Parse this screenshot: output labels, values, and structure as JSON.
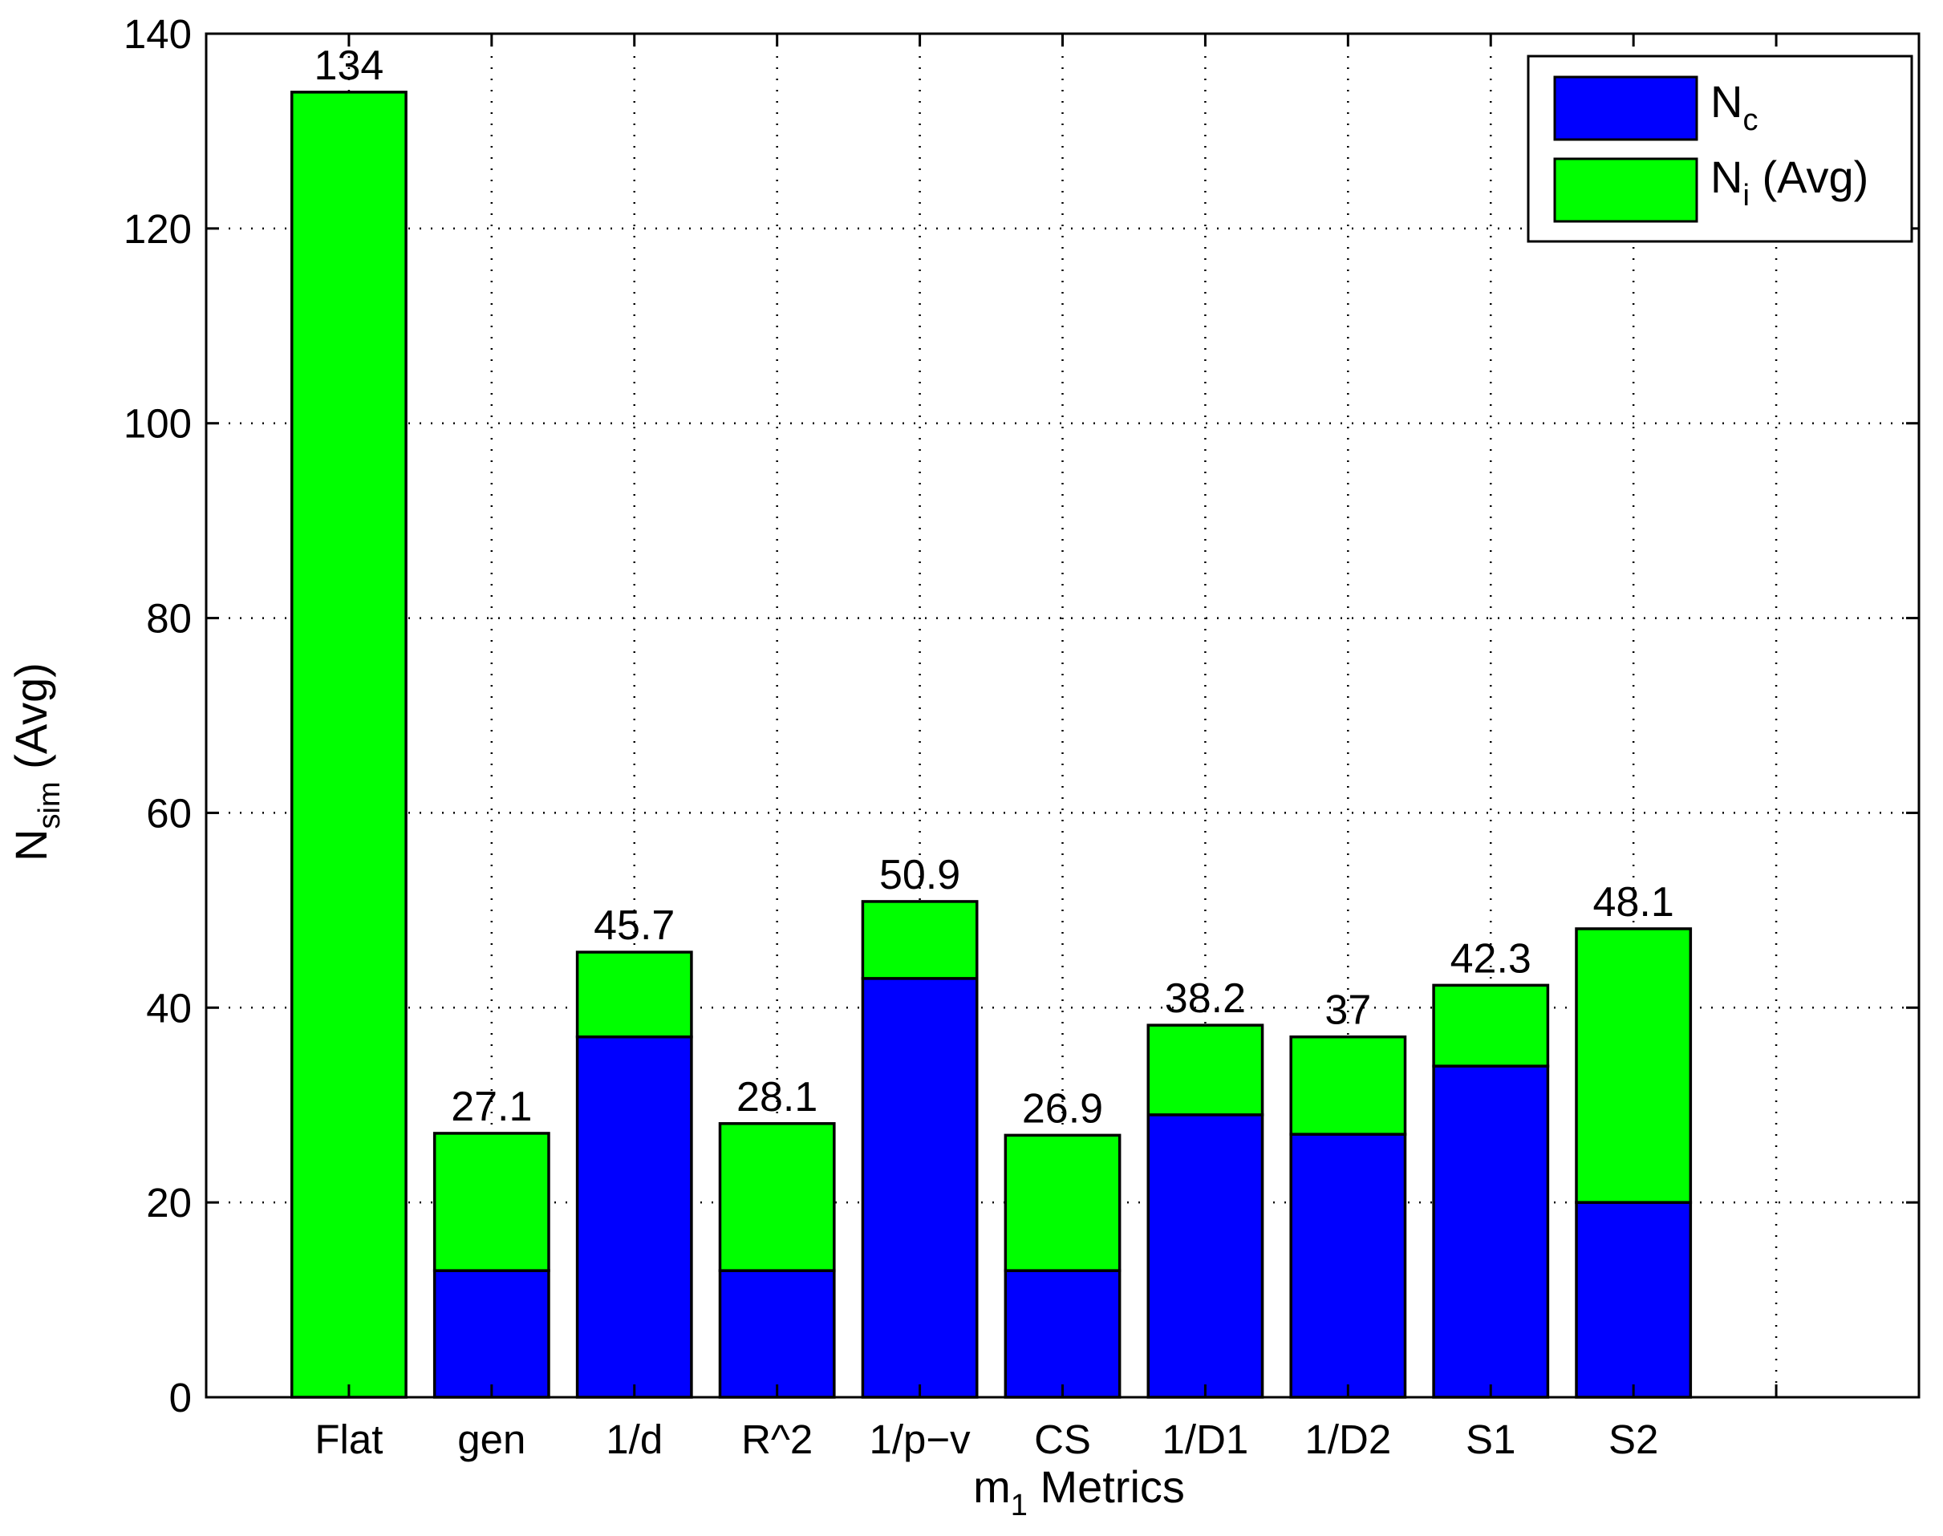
{
  "chart_data": {
    "type": "bar",
    "stacked": true,
    "categories": [
      "Flat",
      "gen",
      "1/d",
      "R^2",
      "1/p−v",
      "CS",
      "1/D1",
      "1/D2",
      "S1",
      "S2"
    ],
    "series": [
      {
        "name": "N_c",
        "values": [
          0,
          13,
          37,
          13,
          43,
          13,
          29,
          27,
          34,
          20
        ],
        "color": "#0000ff"
      },
      {
        "name": "N_i (Avg)",
        "values": [
          134,
          14.1,
          8.7,
          15.1,
          7.9,
          13.9,
          9.2,
          10,
          8.3,
          28.1
        ],
        "color": "#00ff00"
      }
    ],
    "totals_labels": [
      "134",
      "27.1",
      "45.7",
      "28.1",
      "50.9",
      "26.9",
      "38.2",
      "37",
      "42.3",
      "48.1"
    ],
    "totals": [
      134,
      27.1,
      45.7,
      28.1,
      50.9,
      26.9,
      38.2,
      37,
      42.3,
      48.1
    ],
    "ylim": [
      0,
      140
    ],
    "yticks": [
      0,
      20,
      40,
      60,
      80,
      100,
      120,
      140
    ],
    "xlim": [
      0,
      12
    ],
    "xlabel": {
      "main": "m",
      "sub": "1",
      "rest": " Metrics"
    },
    "ylabel": {
      "main": "N",
      "sub": "sim",
      "rest": " (Avg)"
    },
    "legend": {
      "position": "top-right",
      "entries": [
        {
          "main": "N",
          "sub": "c",
          "rest": ""
        },
        {
          "main": "N",
          "sub": "i",
          "rest": " (Avg)"
        }
      ]
    },
    "grid": true
  }
}
